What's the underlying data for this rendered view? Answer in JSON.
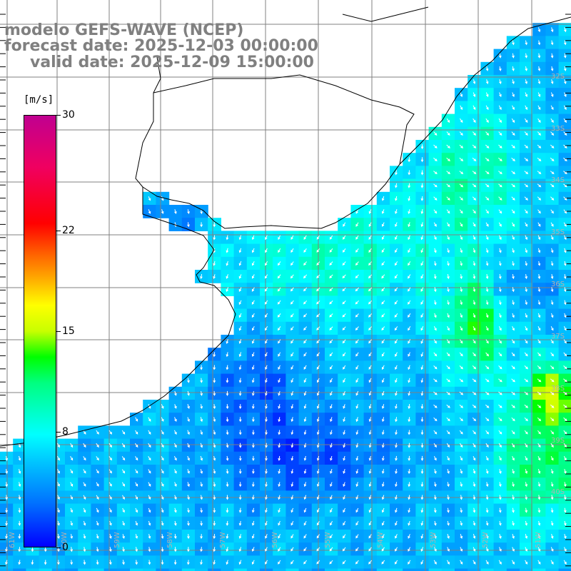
{
  "title": {
    "line1": "modelo GEFS-WAVE (NCEP)",
    "line2": "forecast date: 2025-12-03 00:00:00",
    "line3": "valid date: 2025-12-09 15:00:00"
  },
  "colorbar": {
    "unit": "[m/s]",
    "ticks": [
      {
        "label": "30",
        "value": 30
      },
      {
        "label": "22",
        "value": 22
      },
      {
        "label": "15",
        "value": 15
      },
      {
        "label": "8",
        "value": 8
      },
      {
        "label": "0",
        "value": 0
      }
    ],
    "range": [
      0,
      30
    ],
    "colors": [
      "#0000ff",
      "#00c8ff",
      "#00ffff",
      "#00ff00",
      "#ffff00",
      "#ff0000",
      "#c00090"
    ]
  },
  "map": {
    "lat_labels": [
      "32S",
      "33S",
      "34S",
      "35S",
      "36S",
      "37S",
      "38S",
      "39S",
      "40S"
    ],
    "lon_labels": [
      "61W",
      "60W",
      "59W",
      "58W",
      "57W",
      "56W",
      "55W",
      "54W",
      "53W",
      "52W",
      "51W"
    ],
    "colors": {
      "land": "#ffffff",
      "coastline": "#000000",
      "grid": "#808080",
      "arrow": "#ffffff"
    }
  }
}
